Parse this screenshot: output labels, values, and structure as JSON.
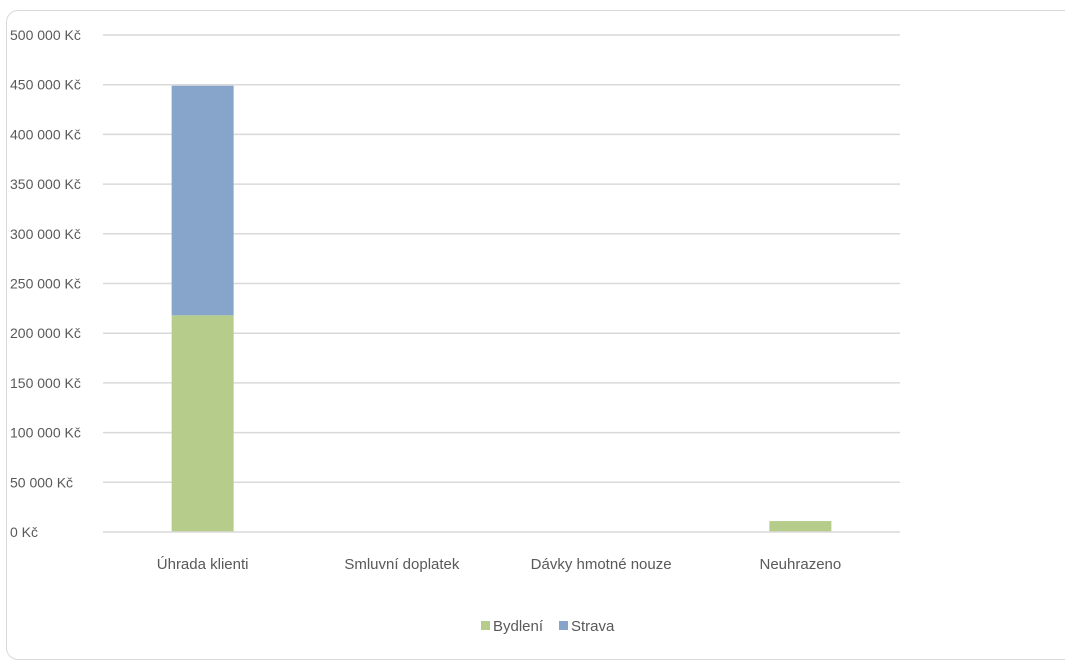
{
  "chart_data": {
    "type": "bar",
    "stacked": true,
    "categories": [
      "Úhrada klienti",
      "Smluvní doplatek",
      "Dávky hmotné nouze",
      "Neuhrazeno"
    ],
    "series": [
      {
        "name": "Bydlení",
        "color": "#b6cc8a",
        "values": [
          218000,
          0,
          0,
          11000
        ]
      },
      {
        "name": "Strava",
        "color": "#87a5cb",
        "values": [
          231000,
          0,
          0,
          0
        ]
      }
    ],
    "y_ticks": [
      "0 Kč",
      "50 000 Kč",
      "100 000 Kč",
      "150 000 Kč",
      "200 000 Kč",
      "250 000 Kč",
      "300 000 Kč",
      "350 000 Kč",
      "400 000 Kč",
      "450 000 Kč",
      "500 000 Kč"
    ],
    "ylim": [
      0,
      500000
    ],
    "y_step": 50000,
    "grid": true,
    "legend_position": "bottom",
    "gridline_color": "#d9d9d9",
    "text_color": "#595959"
  }
}
